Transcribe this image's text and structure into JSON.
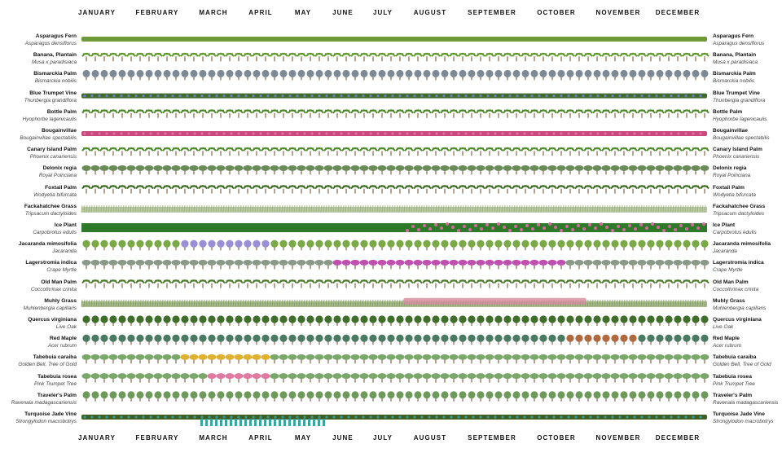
{
  "months": [
    "JANUARY",
    "FEBRUARY",
    "MARCH",
    "APRIL",
    "MAY",
    "JUNE",
    "JULY",
    "AUGUST",
    "SEPTEMBER",
    "OCTOBER",
    "NOVEMBER",
    "DECEMBER"
  ],
  "plants": [
    {
      "name": "Asparagus Fern",
      "sci": "Asparagus densiflorus",
      "kind": "groundcover",
      "color": "#6f9a3a"
    },
    {
      "name": "Banana, Plantain",
      "sci": "Musa x paradisiaca",
      "kind": "palm",
      "color": "#5e9a2c"
    },
    {
      "name": "Bismarckia Palm",
      "sci": "Bismarckia nobilis",
      "kind": "fan",
      "color": "#7d8a96"
    },
    {
      "name": "Blue Trumpet Vine",
      "sci": "Thunbergia grandiflora",
      "kind": "vine",
      "color": "#3f6b2a",
      "accent": "#7b7fd6"
    },
    {
      "name": "Bottle Palm",
      "sci": "Hyophorbe lagenicaulis",
      "kind": "palm",
      "color": "#4e8a2a"
    },
    {
      "name": "Bougainvillae",
      "sci": "Bougainvillae spectabilis",
      "kind": "vine",
      "color": "#c9487e",
      "accent": "#e079a6"
    },
    {
      "name": "Canary Island Palm",
      "sci": "Phoenix canariensis",
      "kind": "palm",
      "color": "#4f8b2c"
    },
    {
      "name": "Delonix regia",
      "sci": "Royal Poinciana",
      "kind": "spreading",
      "color": "#6a8a58"
    },
    {
      "name": "Foxtail Palm",
      "sci": "Wodyetia bifurcata",
      "kind": "palm",
      "color": "#3e6e22"
    },
    {
      "name": "Fackahatchee Grass",
      "sci": "Tripsacum dactyloides",
      "kind": "grass",
      "color": "#9ab07a"
    },
    {
      "name": "Ice Plant",
      "sci": "Carpobrotus edulis",
      "kind": "band",
      "color": "#2f7a2a",
      "accent": "#d46aa0"
    },
    {
      "name": "Jacaranda mimosifolia",
      "sci": "Jacaranda",
      "kind": "tree",
      "color": "#79aa45",
      "accent": "#9a8fd6"
    },
    {
      "name": "Lagerstromia indica",
      "sci": "Crape Myrtle",
      "kind": "spreading",
      "color": "#8a9a88",
      "accent": "#c050b0"
    },
    {
      "name": "Old Man Palm",
      "sci": "Coccothrinax crinita",
      "kind": "palm",
      "color": "#4d7d2d"
    },
    {
      "name": "Muhly Grass",
      "sci": "Muhlenbergia capillaris",
      "kind": "grass",
      "color": "#7f9a5a",
      "accent": "#d88aa0"
    },
    {
      "name": "Quercus virginiana",
      "sci": "Live Oak",
      "kind": "tree",
      "color": "#3f6f2a"
    },
    {
      "name": "Red Maple",
      "sci": "Acer rubrum",
      "kind": "tree",
      "color": "#4a7a62",
      "accent": "#b06a40"
    },
    {
      "name": "Tabebuia caraiba",
      "sci": "Golden Bell, Tree of Gold",
      "kind": "spreading",
      "color": "#7aa86a",
      "accent": "#e0b030"
    },
    {
      "name": "Tabebuia rosea",
      "sci": "Pink Trumpet Tree",
      "kind": "spreading",
      "color": "#7aa86a",
      "accent": "#e07aa0"
    },
    {
      "name": "Traveler's Palm",
      "sci": "Ravenala madagascariensis",
      "kind": "fan",
      "color": "#6d9a5a"
    },
    {
      "name": "Turquoise Jade Vine",
      "sci": "Strongylodon macrobotrys",
      "kind": "vine",
      "color": "#3f5f22",
      "accent": "#3aa6a0"
    }
  ]
}
